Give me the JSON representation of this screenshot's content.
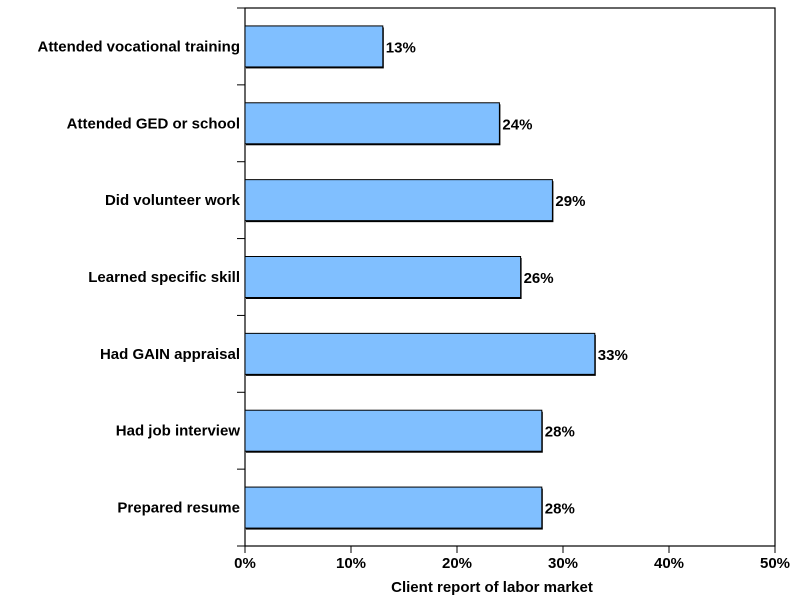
{
  "chart_data": {
    "type": "bar",
    "orientation": "horizontal",
    "categories": [
      "Attended vocational training",
      "Attended GED or school",
      "Did volunteer work",
      "Learned specific skill",
      "Had GAIN appraisal",
      "Had job interview",
      "Prepared resume"
    ],
    "values": [
      13,
      24,
      29,
      26,
      33,
      28,
      28
    ],
    "value_labels": [
      "13%",
      "24%",
      "29%",
      "26%",
      "33%",
      "28%",
      "28%"
    ],
    "xlabel": "Client report of labor market",
    "xlim": [
      0,
      50
    ],
    "x_ticks": [
      0,
      10,
      20,
      30,
      40,
      50
    ],
    "x_tick_labels": [
      "0%",
      "10%",
      "20%",
      "30%",
      "40%",
      "50%"
    ],
    "grid": false,
    "legend": "none",
    "colors": {
      "bar_fill": "#80bfff",
      "bar_stroke": "#000000",
      "axis": "#000000"
    }
  }
}
